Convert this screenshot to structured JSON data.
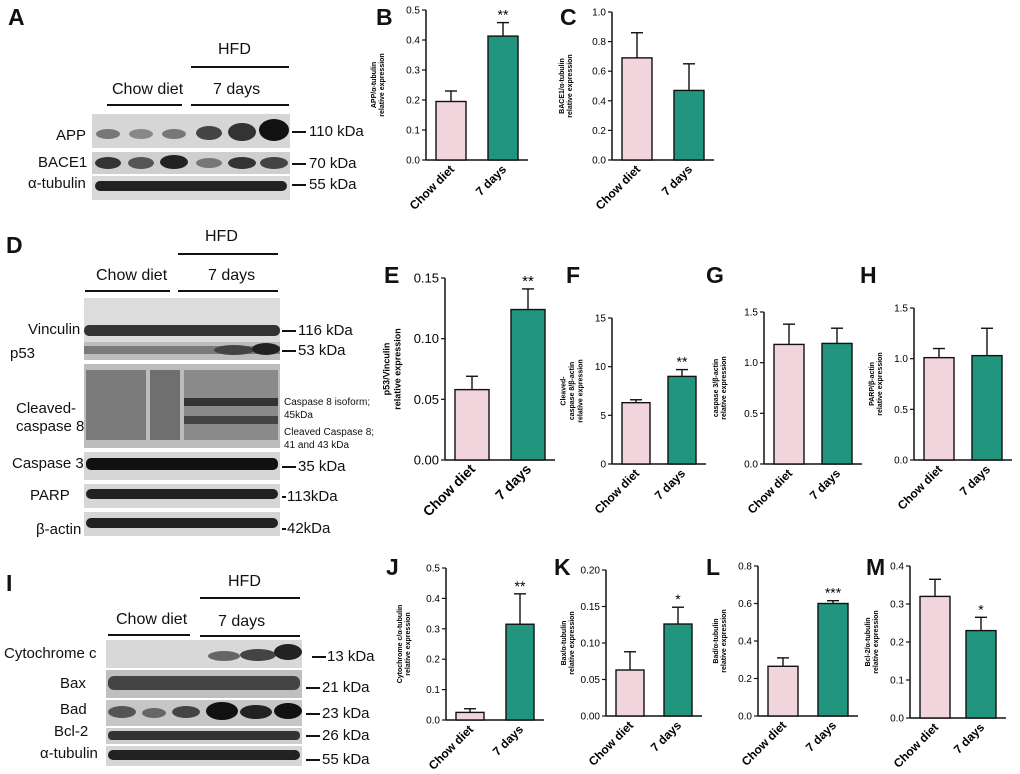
{
  "panels": {
    "A": "A",
    "B": "B",
    "C": "C",
    "D": "D",
    "E": "E",
    "F": "F",
    "G": "G",
    "H": "H",
    "I": "I",
    "J": "J",
    "K": "K",
    "L": "L",
    "M": "M"
  },
  "blot_a": {
    "group_hfd": "HFD",
    "group_chow": "Chow diet",
    "group_7days": "7 days",
    "rows": [
      {
        "label": "APP",
        "size": "110 kDa"
      },
      {
        "label": "BACE1",
        "size": "70 kDa"
      },
      {
        "label": "α-tubulin",
        "size": "55 kDa"
      }
    ]
  },
  "blot_d": {
    "group_hfd": "HFD",
    "group_chow": "Chow diet",
    "group_7days": "7 days",
    "rows": [
      {
        "label": "Vinculin",
        "size": "116 kDa"
      },
      {
        "label": "p53",
        "size": "53 kDa"
      },
      {
        "label": "Cleaved-\ncaspase 8",
        "size": ""
      },
      {
        "label": "Caspase 3",
        "size": "35 kDa"
      },
      {
        "label": "PARP",
        "size": "113kDa"
      },
      {
        "label": "β-actin",
        "size": "42kDa"
      }
    ],
    "casp8_notes": [
      "Caspase 8 isoform;\n45kDa",
      "Cleaved Caspase 8;\n41 and 43 kDa"
    ]
  },
  "blot_i": {
    "group_hfd": "HFD",
    "group_chow": "Chow diet",
    "group_7days": "7 days",
    "rows": [
      {
        "label": "Cytochrome c",
        "size": "13 kDa"
      },
      {
        "label": "Bax",
        "size": "21 kDa"
      },
      {
        "label": "Bad",
        "size": "23 kDa"
      },
      {
        "label": "Bcl-2",
        "size": "26 kDa"
      },
      {
        "label": "α-tubulin",
        "size": "55 kDa"
      }
    ]
  },
  "colors": {
    "chow": "#f2d4dd",
    "hfd": "#22957f",
    "axis": "#111111",
    "band": "#1a1a1a"
  },
  "chart_data": [
    {
      "panel": "B",
      "type": "bar",
      "categories": [
        "Chow diet",
        "7 days"
      ],
      "values": [
        0.195,
        0.413
      ],
      "errors": [
        0.035,
        0.045
      ],
      "ylabel": "APP/α-tubulin\nrelative expression",
      "ylim": [
        0,
        0.5
      ],
      "yticks": [
        "0.0",
        "0.1",
        "0.2",
        "0.3",
        "0.4",
        "0.5"
      ],
      "significance": [
        "",
        "**"
      ]
    },
    {
      "panel": "C",
      "type": "bar",
      "categories": [
        "Chow diet",
        "7 days"
      ],
      "values": [
        0.69,
        0.47
      ],
      "errors": [
        0.17,
        0.18
      ],
      "ylabel": "BACE1/α-tubulin\nrelative expression",
      "ylim": [
        0,
        1.0
      ],
      "yticks": [
        "0.0",
        "0.2",
        "0.4",
        "0.6",
        "0.8",
        "1.0"
      ],
      "significance": [
        "",
        ""
      ]
    },
    {
      "panel": "E",
      "type": "bar",
      "categories": [
        "Chow diet",
        "7 days"
      ],
      "values": [
        0.058,
        0.124
      ],
      "errors": [
        0.011,
        0.017
      ],
      "ylabel": "p53/Vinculin\nrelative expression",
      "ylim": [
        0,
        0.15
      ],
      "yticks": [
        "0.00",
        "0.05",
        "0.10",
        "0.15"
      ],
      "significance": [
        "",
        "**"
      ]
    },
    {
      "panel": "F",
      "type": "bar",
      "categories": [
        "Chow diet",
        "7 days"
      ],
      "values": [
        6.3,
        9.0
      ],
      "errors": [
        0.3,
        0.7
      ],
      "ylabel": "Cleaved-\ncaspase 8/β-actin\nrelative expression",
      "ylim": [
        0,
        15
      ],
      "yticks": [
        "0",
        "5",
        "10",
        "15"
      ],
      "significance": [
        "",
        "**"
      ]
    },
    {
      "panel": "G",
      "type": "bar",
      "categories": [
        "Chow diet",
        "7 days"
      ],
      "values": [
        1.18,
        1.19
      ],
      "errors": [
        0.2,
        0.15
      ],
      "ylabel": "caspase 3/β-actin\nrelative expression",
      "ylim": [
        0,
        1.5
      ],
      "yticks": [
        "0.0",
        "0.5",
        "1.0",
        "1.5"
      ],
      "significance": [
        "",
        ""
      ]
    },
    {
      "panel": "H",
      "type": "bar",
      "categories": [
        "Chow diet",
        "7 days"
      ],
      "values": [
        1.01,
        1.03
      ],
      "errors": [
        0.09,
        0.27
      ],
      "ylabel": "PARP/β-actin\nrelative expression",
      "ylim": [
        0,
        1.5
      ],
      "yticks": [
        "0.0",
        "0.5",
        "1.0",
        "1.5"
      ],
      "significance": [
        "",
        ""
      ]
    },
    {
      "panel": "J",
      "type": "bar",
      "categories": [
        "Chow diet",
        "7 days"
      ],
      "values": [
        0.025,
        0.315
      ],
      "errors": [
        0.012,
        0.1
      ],
      "ylabel": "Cytochrome c/α-tubulin\nrelative expression",
      "ylim": [
        0,
        0.5
      ],
      "yticks": [
        "0.0",
        "0.1",
        "0.2",
        "0.3",
        "0.4",
        "0.5"
      ],
      "significance": [
        "",
        "**"
      ]
    },
    {
      "panel": "K",
      "type": "bar",
      "categories": [
        "Chow diet",
        "7 days"
      ],
      "values": [
        0.063,
        0.126
      ],
      "errors": [
        0.025,
        0.023
      ],
      "ylabel": "Bax/α-tubulin\nrelative expression",
      "ylim": [
        0,
        0.2
      ],
      "yticks": [
        "0.00",
        "0.05",
        "0.10",
        "0.15",
        "0.20"
      ],
      "significance": [
        "",
        "*"
      ]
    },
    {
      "panel": "L",
      "type": "bar",
      "categories": [
        "Chow diet",
        "7 days"
      ],
      "values": [
        0.265,
        0.6
      ],
      "errors": [
        0.045,
        0.015
      ],
      "ylabel": "Bad/α-tubulin\nrelative expression",
      "ylim": [
        0,
        0.8
      ],
      "yticks": [
        "0.0",
        "0.2",
        "0.4",
        "0.6",
        "0.8"
      ],
      "significance": [
        "",
        "***"
      ]
    },
    {
      "panel": "M",
      "type": "bar",
      "categories": [
        "Chow diet",
        "7 days"
      ],
      "values": [
        0.32,
        0.23
      ],
      "errors": [
        0.045,
        0.035
      ],
      "ylabel": "Bcl-2/α-tubulin\nrelative expression",
      "ylim": [
        0,
        0.4
      ],
      "yticks": [
        "0.0",
        "0.1",
        "0.2",
        "0.3",
        "0.4"
      ],
      "significance": [
        "",
        "*"
      ]
    }
  ]
}
